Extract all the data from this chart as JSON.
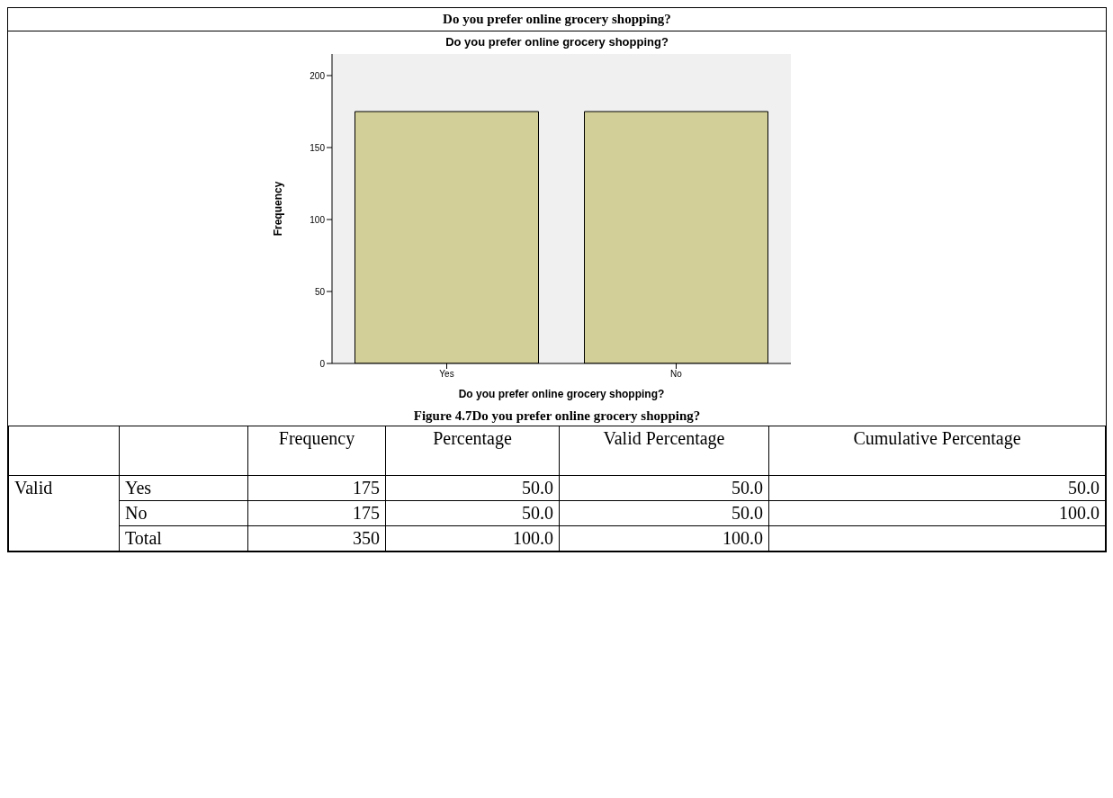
{
  "chart_data": [
    {
      "type": "bar",
      "title": "Do you prefer online grocery shopping?",
      "xlabel": "Do you prefer online grocery shopping?",
      "ylabel": "Frequency",
      "categories": [
        "Yes",
        "No"
      ],
      "values": [
        175,
        175
      ],
      "color": "#d3cf98",
      "ylim": [
        0,
        215
      ],
      "yticks": [
        0,
        50,
        100,
        150,
        200
      ],
      "grid": false,
      "legend": false,
      "annotations": [
        "Do you prefer online grocery shopping?",
        "Figure 4.7Do you prefer online grocery shopping?"
      ]
    },
    {
      "type": "other",
      "categories": [
        null,
        null,
        "Frequency",
        "Percentage",
        "Valid Percentage",
        "Cumulative Percentage"
      ],
      "cell_labels": [
        [
          "Valid",
          "Yes",
          "175",
          "50.0",
          "50.0",
          "50.0"
        ],
        [
          null,
          "No",
          "175",
          "50.0",
          "50.0",
          "100.0"
        ],
        [
          null,
          "Total",
          "350",
          "100.0",
          "100.0",
          null
        ]
      ]
    }
  ]
}
